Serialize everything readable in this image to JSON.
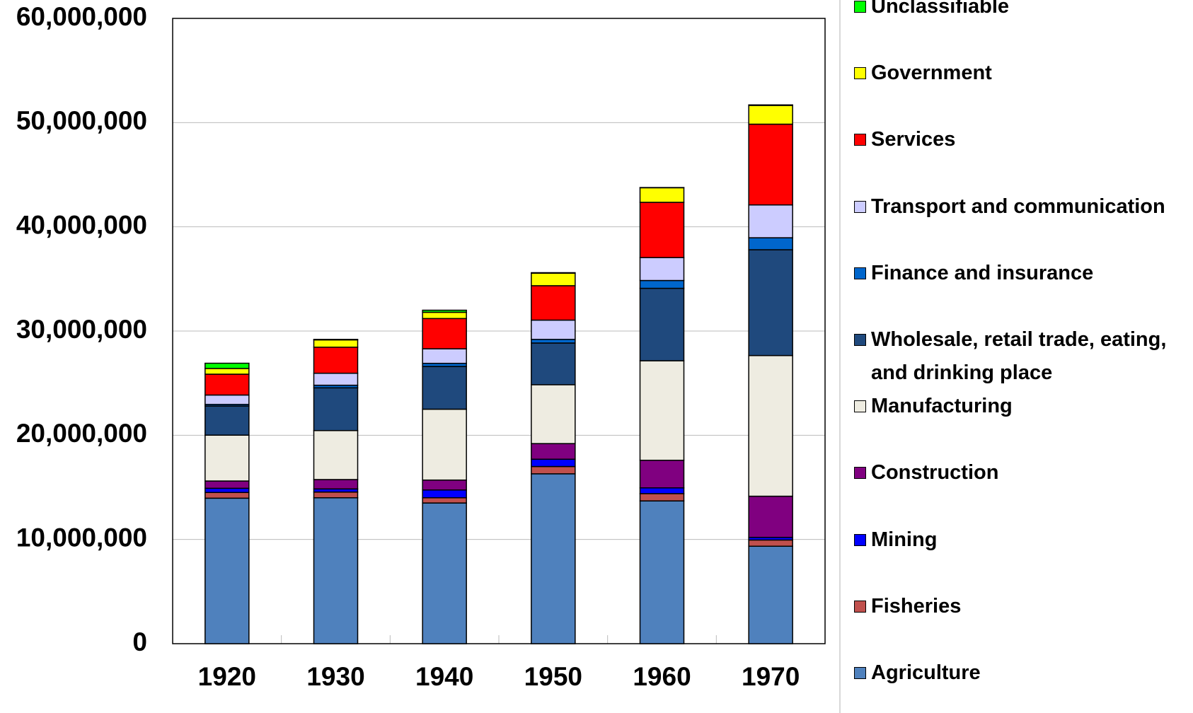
{
  "chart_data": {
    "type": "stacked_bar",
    "categories": [
      "1920",
      "1930",
      "1940",
      "1950",
      "1960",
      "1970"
    ],
    "series": [
      {
        "name": "Agriculture",
        "color": "#4f81bd",
        "values": [
          13.96,
          14.0,
          13.5,
          16.3,
          13.7,
          9.35
        ]
      },
      {
        "name": "Fisheries",
        "color": "#c0504d",
        "values": [
          0.55,
          0.55,
          0.5,
          0.7,
          0.7,
          0.6
        ]
      },
      {
        "name": "Mining",
        "color": "#0000ff",
        "values": [
          0.4,
          0.3,
          0.75,
          0.7,
          0.55,
          0.25
        ]
      },
      {
        "name": "Construction",
        "color": "#800080",
        "values": [
          0.7,
          0.9,
          0.95,
          1.5,
          2.65,
          3.95
        ]
      },
      {
        "name": "Manufacturing",
        "color": "#eeece1",
        "values": [
          4.4,
          4.7,
          6.8,
          5.65,
          9.55,
          13.5
        ]
      },
      {
        "name": "Wholesale, retail trade, eating, and drinking place",
        "color": "#1f497d",
        "values": [
          2.8,
          4.1,
          4.1,
          4.0,
          6.95,
          10.15
        ]
      },
      {
        "name": "Finance and insurance",
        "color": "#0066cc",
        "values": [
          0.15,
          0.25,
          0.3,
          0.35,
          0.75,
          1.15
        ]
      },
      {
        "name": "Transport and communication",
        "color": "#ccccff",
        "values": [
          0.9,
          1.15,
          1.4,
          1.85,
          2.2,
          3.15
        ]
      },
      {
        "name": "Services",
        "color": "#ff0000",
        "values": [
          2.0,
          2.5,
          2.9,
          3.3,
          5.3,
          7.75
        ]
      },
      {
        "name": "Government",
        "color": "#ffff00",
        "values": [
          0.55,
          0.7,
          0.6,
          1.2,
          1.4,
          1.8
        ]
      },
      {
        "name": "Unclassifiable",
        "color": "#00ff00",
        "values": [
          0.5,
          0.05,
          0.2,
          0.05,
          0.02,
          0.05
        ]
      }
    ],
    "ylim": [
      0,
      60
    ],
    "yticks": [
      0,
      {
        "value": 10,
        "label": "10,000,000"
      },
      {
        "value": 20,
        "label": "20,000,000"
      },
      {
        "value": 30,
        "label": "30,000,000"
      },
      {
        "value": 40,
        "label": "40,000,000"
      },
      {
        "value": 50,
        "label": "50,000,000"
      },
      {
        "value": 60,
        "label": "60,000,000"
      }
    ],
    "grid": true
  }
}
